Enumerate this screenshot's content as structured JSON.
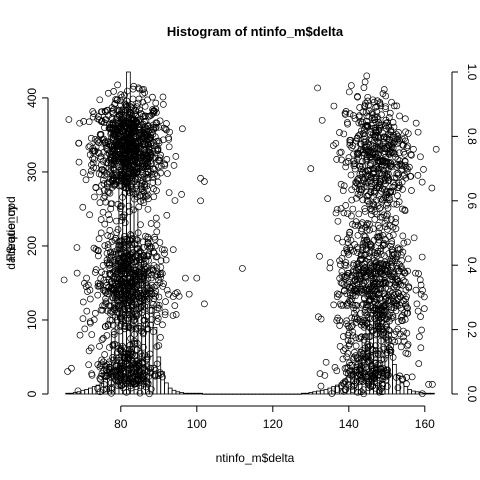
{
  "chart_data": {
    "type": "scatter",
    "title": "Histogram of ntinfo_m$delta",
    "xlabel": "ntinfo_m$delta",
    "ylabel_left_a": "Frequency",
    "ylabel_left_b": "dat$ratio_upd",
    "xlim": [
      64,
      164
    ],
    "xticks": [
      80,
      100,
      120,
      140,
      160
    ],
    "ylim_left": [
      0,
      435
    ],
    "yticks_left": [
      0,
      100,
      200,
      300,
      400
    ],
    "ylim_right": [
      0,
      1.0
    ],
    "yticks_right": [
      0.0,
      0.2,
      0.4,
      0.6,
      0.8,
      1.0
    ],
    "grid": false,
    "legend": "none",
    "histogram": {
      "bin_width": 1,
      "bins": [
        {
          "x": 66,
          "count": 1
        },
        {
          "x": 67,
          "count": 1
        },
        {
          "x": 68,
          "count": 2
        },
        {
          "x": 69,
          "count": 3
        },
        {
          "x": 70,
          "count": 5
        },
        {
          "x": 71,
          "count": 6
        },
        {
          "x": 72,
          "count": 8
        },
        {
          "x": 73,
          "count": 10
        },
        {
          "x": 74,
          "count": 12
        },
        {
          "x": 75,
          "count": 14
        },
        {
          "x": 76,
          "count": 20
        },
        {
          "x": 77,
          "count": 40
        },
        {
          "x": 78,
          "count": 80
        },
        {
          "x": 79,
          "count": 180
        },
        {
          "x": 80,
          "count": 300
        },
        {
          "x": 81,
          "count": 380
        },
        {
          "x": 82,
          "count": 435
        },
        {
          "x": 83,
          "count": 320
        },
        {
          "x": 84,
          "count": 250
        },
        {
          "x": 85,
          "count": 200
        },
        {
          "x": 86,
          "count": 160
        },
        {
          "x": 87,
          "count": 150
        },
        {
          "x": 88,
          "count": 120
        },
        {
          "x": 89,
          "count": 90
        },
        {
          "x": 90,
          "count": 50
        },
        {
          "x": 91,
          "count": 30
        },
        {
          "x": 92,
          "count": 15
        },
        {
          "x": 93,
          "count": 8
        },
        {
          "x": 94,
          "count": 5
        },
        {
          "x": 95,
          "count": 3
        },
        {
          "x": 96,
          "count": 2
        },
        {
          "x": 97,
          "count": 1
        },
        {
          "x": 98,
          "count": 1
        },
        {
          "x": 99,
          "count": 1
        },
        {
          "x": 100,
          "count": 1
        },
        {
          "x": 101,
          "count": 1
        },
        {
          "x": 102,
          "count": 0
        },
        {
          "x": 103,
          "count": 0
        },
        {
          "x": 104,
          "count": 0
        },
        {
          "x": 105,
          "count": 0
        },
        {
          "x": 106,
          "count": 0
        },
        {
          "x": 107,
          "count": 0
        },
        {
          "x": 108,
          "count": 0
        },
        {
          "x": 109,
          "count": 0
        },
        {
          "x": 110,
          "count": 0
        },
        {
          "x": 111,
          "count": 0
        },
        {
          "x": 112,
          "count": 0
        },
        {
          "x": 113,
          "count": 0
        },
        {
          "x": 114,
          "count": 0
        },
        {
          "x": 115,
          "count": 0
        },
        {
          "x": 116,
          "count": 0
        },
        {
          "x": 117,
          "count": 0
        },
        {
          "x": 118,
          "count": 0
        },
        {
          "x": 119,
          "count": 0
        },
        {
          "x": 120,
          "count": 0
        },
        {
          "x": 121,
          "count": 0
        },
        {
          "x": 122,
          "count": 0
        },
        {
          "x": 123,
          "count": 0
        },
        {
          "x": 124,
          "count": 0
        },
        {
          "x": 125,
          "count": 0
        },
        {
          "x": 126,
          "count": 0
        },
        {
          "x": 127,
          "count": 0
        },
        {
          "x": 128,
          "count": 1
        },
        {
          "x": 129,
          "count": 1
        },
        {
          "x": 130,
          "count": 2
        },
        {
          "x": 131,
          "count": 3
        },
        {
          "x": 132,
          "count": 4
        },
        {
          "x": 133,
          "count": 5
        },
        {
          "x": 134,
          "count": 6
        },
        {
          "x": 135,
          "count": 8
        },
        {
          "x": 136,
          "count": 10
        },
        {
          "x": 137,
          "count": 12
        },
        {
          "x": 138,
          "count": 15
        },
        {
          "x": 139,
          "count": 20
        },
        {
          "x": 140,
          "count": 25
        },
        {
          "x": 141,
          "count": 30
        },
        {
          "x": 142,
          "count": 40
        },
        {
          "x": 143,
          "count": 60
        },
        {
          "x": 144,
          "count": 80
        },
        {
          "x": 145,
          "count": 100
        },
        {
          "x": 146,
          "count": 110
        },
        {
          "x": 147,
          "count": 120
        },
        {
          "x": 148,
          "count": 115
        },
        {
          "x": 149,
          "count": 100
        },
        {
          "x": 150,
          "count": 85
        },
        {
          "x": 151,
          "count": 60
        },
        {
          "x": 152,
          "count": 40
        },
        {
          "x": 153,
          "count": 25
        },
        {
          "x": 154,
          "count": 15
        },
        {
          "x": 155,
          "count": 10
        },
        {
          "x": 156,
          "count": 6
        },
        {
          "x": 157,
          "count": 4
        },
        {
          "x": 158,
          "count": 3
        },
        {
          "x": 159,
          "count": 2
        },
        {
          "x": 160,
          "count": 1
        },
        {
          "x": 161,
          "count": 1
        },
        {
          "x": 162,
          "count": 1
        }
      ]
    },
    "scatter_clusters": [
      {
        "name": "left-upper",
        "x_center": 82,
        "x_spread": 4.5,
        "y_center": 0.76,
        "y_spread": 0.08,
        "count": 900
      },
      {
        "name": "left-lower",
        "x_center": 82,
        "x_spread": 4.5,
        "y_center": 0.34,
        "y_spread": 0.09,
        "count": 650
      },
      {
        "name": "left-bottom",
        "x_center": 82,
        "x_spread": 4.0,
        "y_center": 0.07,
        "y_spread": 0.04,
        "count": 250
      },
      {
        "name": "right-upper",
        "x_center": 147,
        "x_spread": 4.5,
        "y_center": 0.74,
        "y_spread": 0.1,
        "count": 500
      },
      {
        "name": "right-lower",
        "x_center": 147,
        "x_spread": 5.0,
        "y_center": 0.33,
        "y_spread": 0.11,
        "count": 650
      },
      {
        "name": "right-bottom",
        "x_center": 145,
        "x_spread": 4.5,
        "y_center": 0.07,
        "y_spread": 0.04,
        "count": 200
      }
    ],
    "scatter_outliers": [
      {
        "x": 66,
        "y": 0.07
      },
      {
        "x": 67,
        "y": 0.08
      },
      {
        "x": 69,
        "y": 0.72
      },
      {
        "x": 70,
        "y": 0.58
      },
      {
        "x": 71,
        "y": 0.36
      },
      {
        "x": 72,
        "y": 0.22
      },
      {
        "x": 74,
        "y": 0.75
      },
      {
        "x": 92,
        "y": 0.82
      },
      {
        "x": 94,
        "y": 0.71
      },
      {
        "x": 96,
        "y": 0.62
      },
      {
        "x": 97,
        "y": 0.36
      },
      {
        "x": 98,
        "y": 0.31
      },
      {
        "x": 100,
        "y": 0.36
      },
      {
        "x": 101,
        "y": 0.67
      },
      {
        "x": 101,
        "y": 0.6
      },
      {
        "x": 102,
        "y": 0.66
      },
      {
        "x": 102,
        "y": 0.28
      },
      {
        "x": 112,
        "y": 0.39
      },
      {
        "x": 130,
        "y": 0.7
      },
      {
        "x": 132,
        "y": 0.24
      },
      {
        "x": 133,
        "y": 0.85
      },
      {
        "x": 161,
        "y": 0.03
      },
      {
        "x": 162,
        "y": 0.03
      },
      {
        "x": 163,
        "y": 0.76
      }
    ]
  }
}
